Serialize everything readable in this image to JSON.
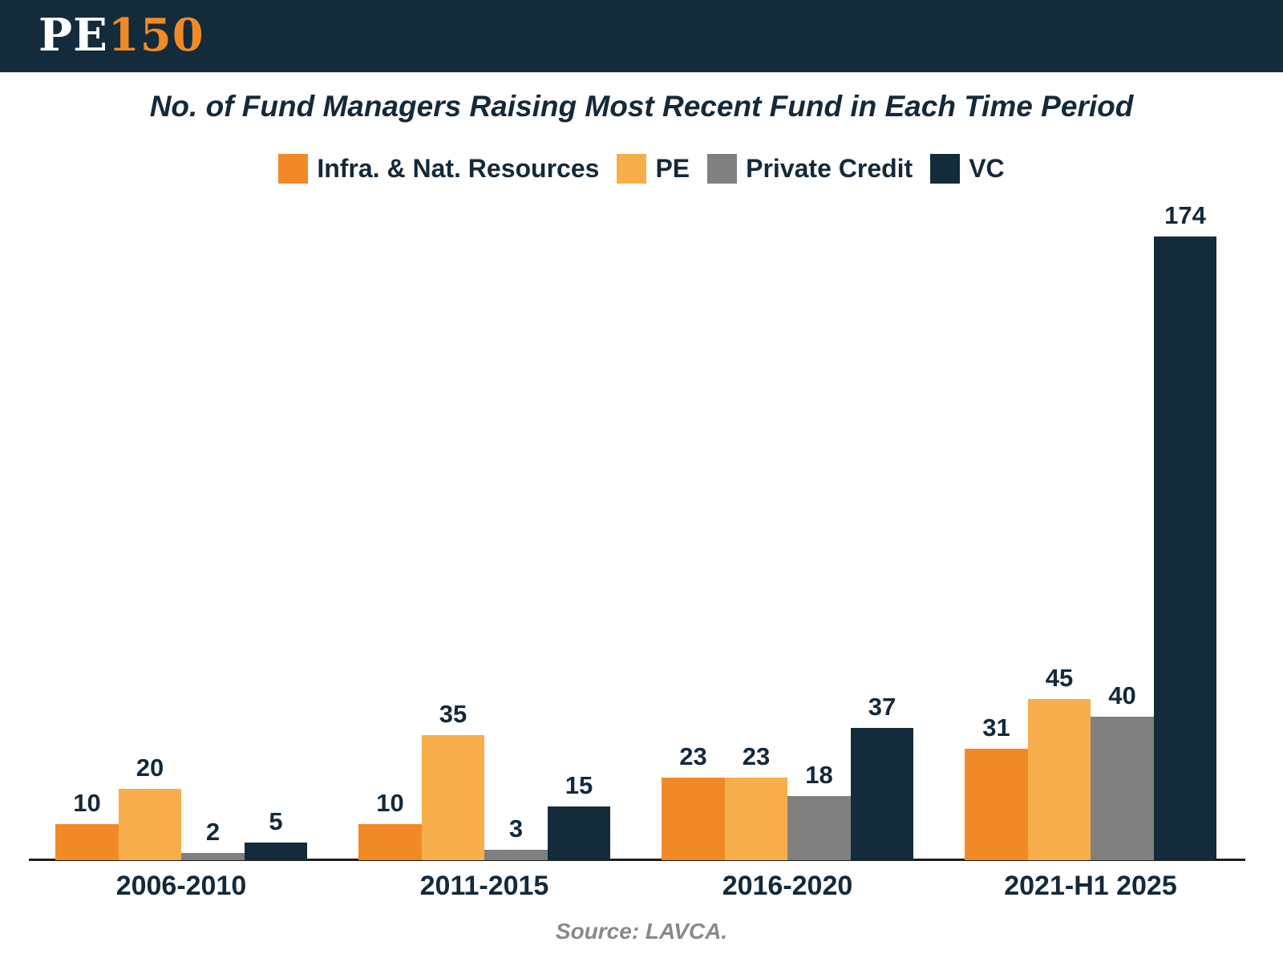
{
  "header": {
    "logo_pe": "PE",
    "logo_150": "150"
  },
  "chart_data": {
    "type": "bar",
    "title": "No. of Fund Managers Raising Most Recent Fund in Each Time Period",
    "categories": [
      "2006-2010",
      "2011-2015",
      "2016-2020",
      "2021-H1 2025"
    ],
    "series": [
      {
        "name": "Infra. & Nat. Resources",
        "color": "#F18A26",
        "values": [
          10,
          10,
          23,
          31
        ]
      },
      {
        "name": "PE",
        "color": "#F7AE4B",
        "values": [
          20,
          35,
          23,
          45
        ]
      },
      {
        "name": "Private Credit",
        "color": "#808080",
        "values": [
          2,
          3,
          18,
          40
        ]
      },
      {
        "name": "VC",
        "color": "#132B3A",
        "values": [
          5,
          15,
          37,
          174
        ]
      }
    ],
    "ylim": [
      0,
      174
    ],
    "grid": false,
    "legend_position": "top",
    "value_labels": true,
    "xlabel": "",
    "ylabel": ""
  },
  "source": "Source: LAVCA.",
  "colors": {
    "header_bg": "#132B3A",
    "text": "#14293A",
    "axis_line": "#1D1D1D",
    "source_text": "#8A8A8A",
    "logo_accent": "#F18A26"
  }
}
